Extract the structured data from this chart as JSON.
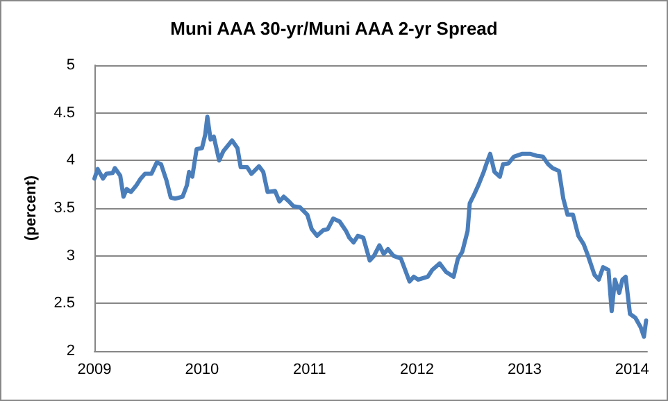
{
  "chart_data": {
    "type": "line",
    "title": "Muni AAA 30-yr/Muni AAA 2-yr Spread",
    "ylabel": "(percent)",
    "series": [
      {
        "color": "#4a7ebb",
        "x": [
          2009,
          2009.03,
          2009.08,
          2009.11,
          2009.17,
          2009.19,
          2009.24,
          2009.27,
          2009.3,
          2009.34,
          2009.39,
          2009.43,
          2009.47,
          2009.53,
          2009.58,
          2009.62,
          2009.67,
          2009.71,
          2009.75,
          2009.82,
          2009.86,
          2009.88,
          2009.91,
          2009.95,
          2010.0,
          2010.03,
          2010.05,
          2010.08,
          2010.11,
          2010.16,
          2010.2,
          2010.28,
          2010.33,
          2010.36,
          2010.42,
          2010.46,
          2010.53,
          2010.57,
          2010.61,
          2010.68,
          2010.72,
          2010.76,
          2010.81,
          2010.85,
          2010.91,
          2010.98,
          2011.02,
          2011.07,
          2011.13,
          2011.17,
          2011.22,
          2011.28,
          2011.34,
          2011.37,
          2011.41,
          2011.45,
          2011.5,
          2011.56,
          2011.6,
          2011.65,
          2011.69,
          2011.73,
          2011.78,
          2011.85,
          2011.93,
          2011.97,
          2012.01,
          2012.1,
          2012.14,
          2012.21,
          2012.27,
          2012.34,
          2012.38,
          2012.42,
          2012.47,
          2012.49,
          2012.53,
          2012.57,
          2012.62,
          2012.65,
          2012.68,
          2012.72,
          2012.77,
          2012.8,
          2012.85,
          2012.9,
          2012.98,
          2013.05,
          2013.11,
          2013.17,
          2013.22,
          2013.26,
          2013.32,
          2013.36,
          2013.4,
          2013.45,
          2013.5,
          2013.55,
          2013.59,
          2013.65,
          2013.69,
          2013.73,
          2013.78,
          2013.81,
          2013.84,
          2013.88,
          2013.91,
          2013.94,
          2013.98,
          2014.03,
          2014.08,
          2014.11,
          2014.13
        ],
        "values": [
          3.81,
          3.91,
          3.81,
          3.86,
          3.87,
          3.92,
          3.84,
          3.62,
          3.7,
          3.67,
          3.74,
          3.81,
          3.86,
          3.86,
          3.98,
          3.96,
          3.79,
          3.61,
          3.6,
          3.62,
          3.74,
          3.88,
          3.83,
          4.12,
          4.13,
          4.27,
          4.46,
          4.22,
          4.25,
          4.0,
          4.1,
          4.21,
          4.13,
          3.93,
          3.93,
          3.86,
          3.94,
          3.88,
          3.67,
          3.68,
          3.57,
          3.62,
          3.57,
          3.52,
          3.51,
          3.43,
          3.28,
          3.21,
          3.27,
          3.28,
          3.39,
          3.36,
          3.26,
          3.19,
          3.14,
          3.21,
          3.19,
          2.95,
          3.0,
          3.11,
          3.02,
          3.07,
          3.0,
          2.97,
          2.73,
          2.78,
          2.75,
          2.78,
          2.85,
          2.92,
          2.83,
          2.78,
          2.97,
          3.04,
          3.26,
          3.55,
          3.64,
          3.74,
          3.88,
          3.98,
          4.07,
          3.88,
          3.83,
          3.96,
          3.97,
          4.04,
          4.07,
          4.07,
          4.05,
          4.04,
          3.96,
          3.92,
          3.89,
          3.6,
          3.43,
          3.43,
          3.21,
          3.12,
          3.0,
          2.8,
          2.75,
          2.88,
          2.85,
          2.42,
          2.75,
          2.61,
          2.75,
          2.78,
          2.39,
          2.35,
          2.25,
          2.15,
          2.32
        ]
      }
    ],
    "xlim": [
      2009,
      2014.14
    ],
    "xticks": [
      2009,
      2010,
      2011,
      2012,
      2013,
      2014
    ],
    "ylim": [
      2,
      5
    ],
    "yticks": [
      2,
      2.5,
      3,
      3.5,
      4,
      4.5,
      5
    ],
    "grid": "y",
    "marker": "none",
    "line_style": "solid"
  }
}
